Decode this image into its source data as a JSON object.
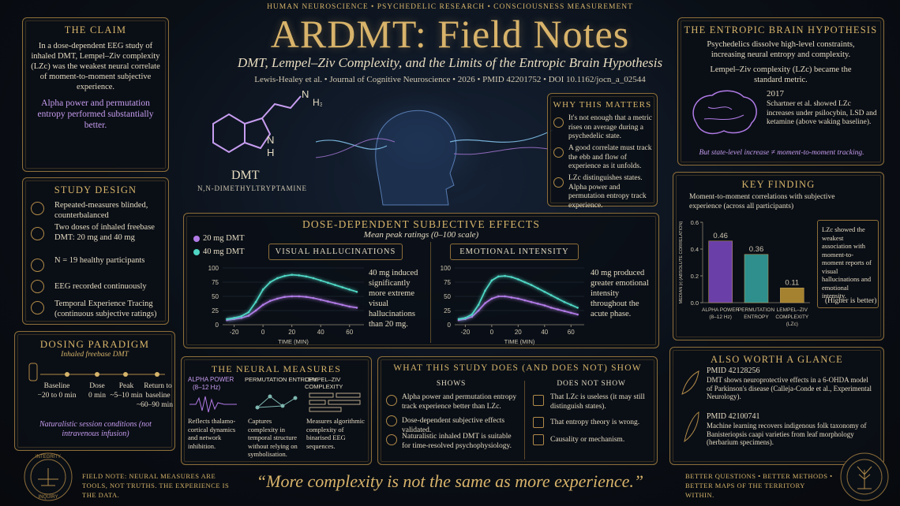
{
  "header": {
    "topline": "HUMAN NEUROSCIENCE  •  PSYCHEDELIC RESEARCH  •  CONSCIOUSNESS MEASUREMENT",
    "title": "ARDMT: Field Notes",
    "subtitle": "DMT, Lempel–Ziv Complexity, and the Limits of the Entropic Brain Hypothesis",
    "citation": "Lewis-Healey et al.  •  Journal of Cognitive Neuroscience  •  2026  •  PMID 42201752  •  DOI 10.1162/jocn_a_02544"
  },
  "molecule": {
    "label": "DMT",
    "full_name": "N,N-DIMETHYLTRYPTAMINE",
    "atoms": [
      "N",
      "H₃",
      "N",
      "H"
    ]
  },
  "claim": {
    "title": "THE CLAIM",
    "text": "In a dose-dependent EEG study of inhaled DMT, Lempel–Ziv complexity (LZc) was the weakest neural correlate of moment-to-moment subjective experience.",
    "highlight": "Alpha power and permutation entropy performed substantially better."
  },
  "study_design": {
    "title": "STUDY DESIGN",
    "items": [
      "Repeated-measures blinded, counterbalanced",
      "Two doses of inhaled freebase DMT: 20 mg and 40 mg",
      "N = 19 healthy participants",
      "EEG recorded continuously",
      "Temporal Experience Tracing (continuous subjective ratings)"
    ]
  },
  "dosing": {
    "title": "DOSING PARADIGM",
    "subtitle": "Inhaled freebase DMT",
    "steps": [
      {
        "label": "Baseline",
        "time": "−20 to 0 min"
      },
      {
        "label": "Dose",
        "time": "0 min"
      },
      {
        "label": "Peak",
        "time": "~5–10 min"
      },
      {
        "label": "Return to baseline",
        "time": "~60–90 min"
      }
    ],
    "note": "Naturalistic session conditions (not intravenous infusion)"
  },
  "effects": {
    "title": "DOSE-DEPENDENT SUBJECTIVE EFFECTS",
    "subtitle": "Mean peak ratings (0–100 scale)"
  },
  "why": {
    "title": "WHY THIS MATTERS",
    "items": [
      "It's not enough that a metric rises on average during a psychedelic state.",
      "A good correlate must track the ebb and flow of experience as it unfolds.",
      "LZc distinguishes states. Alpha power and permutation entropy track experience."
    ]
  },
  "hypothesis": {
    "title": "THE ENTROPIC BRAIN HYPOTHESIS",
    "text": "Psychedelics dissolve high-level constraints, increasing neural entropy and complexity.",
    "metric": "Lempel–Ziv complexity (LZc) became the standard metric.",
    "year": "2017",
    "evidence": "Schartner et al. showed LZc increases under psilocybin, LSD and ketamine (above waking baseline).",
    "caveat": "But state-level increase ≠ moment-to-moment tracking."
  },
  "key_finding": {
    "title": "KEY FINDING",
    "subtitle": "Moment-to-moment correlations with subjective experience (across all participants)",
    "note": "LZc showed the weakest association with moment-to-moment reports of visual hallucinations and emotional intensity.",
    "note_small": "(Higher is better)"
  },
  "neural": {
    "title": "THE NEURAL MEASURES",
    "measures": [
      {
        "name": "ALPHA POWER",
        "sub": "(8–12 Hz)",
        "desc": "Reflects thalamo-cortical dynamics and network inhibition."
      },
      {
        "name": "PERMUTATION ENTROPY",
        "desc": "Captures complexity in temporal structure without relying on symbolisation."
      },
      {
        "name": "LEMPEL–ZIV COMPLEXITY",
        "desc": "Measures algorithmic complexity of binarised EEG sequences."
      }
    ]
  },
  "shows": {
    "title": "WHAT THIS STUDY DOES (AND DOES NOT) SHOW",
    "does_title": "SHOWS",
    "does": [
      "Alpha power and permutation entropy track experience better than LZc.",
      "Dose-dependent subjective effects validated.",
      "Naturalistic inhaled DMT is suitable for time-resolved psychophysiology."
    ],
    "not_title": "DOES NOT SHOW",
    "not": [
      "That LZc is useless (it may still distinguish states).",
      "That entropy theory is wrong.",
      "Causality or mechanism."
    ]
  },
  "also": {
    "title": "ALSO WORTH A GLANCE",
    "items": [
      {
        "pmid": "PMID 42128256",
        "text": "DMT shows neuroprotective effects in a 6-OHDA model of Parkinson's disease (Calleja-Conde et al., Experimental Neurology)."
      },
      {
        "pmid": "PMID 42100741",
        "text": "Machine learning recovers indigenous folk taxonomy of Banisteriopsis caapi varieties from leaf morphology (herbarium specimens)."
      }
    ]
  },
  "footer": {
    "left": "FIELD NOTE: NEURAL MEASURES ARE TOOLS, NOT TRUTHS. THE EXPERIENCE IS THE DATA.",
    "quote": "“More complexity is not the same as more experience.”",
    "right": "BETTER QUESTIONS • BETTER METHODS • BETTER MAPS OF THE TERRITORY WITHIN.",
    "seal": [
      "INTEGRITY",
      "INQUIRY"
    ]
  },
  "chart_data": [
    {
      "type": "line",
      "title": "VISUAL HALLUCINATIONS",
      "x_label": "TIME (MIN)",
      "x": [
        -25,
        -20,
        -15,
        -10,
        -5,
        0,
        5,
        10,
        15,
        20,
        25,
        30,
        35,
        40,
        45,
        50,
        55,
        60,
        65
      ],
      "xlim": [
        -28,
        70
      ],
      "xticks": [
        -20,
        0,
        20,
        40,
        60
      ],
      "ylim": [
        0,
        100
      ],
      "yticks": [
        0,
        25,
        50,
        75,
        100
      ],
      "series": [
        {
          "name": "20 mg DMT",
          "color": "#b17be6",
          "values": [
            8,
            10,
            12,
            16,
            25,
            35,
            42,
            46,
            49,
            50,
            50,
            49,
            47,
            44,
            41,
            38,
            35,
            32,
            30
          ]
        },
        {
          "name": "40 mg DMT",
          "color": "#4fd6c4",
          "values": [
            10,
            12,
            15,
            22,
            40,
            62,
            75,
            82,
            86,
            88,
            87,
            85,
            82,
            78,
            74,
            70,
            66,
            62,
            58
          ]
        }
      ],
      "annotation": "40 mg induced significantly more extreme visual hallucinations than 20 mg."
    },
    {
      "type": "line",
      "title": "EMOTIONAL INTENSITY",
      "x_label": "TIME (MIN)",
      "x": [
        -25,
        -20,
        -15,
        -10,
        -5,
        0,
        5,
        10,
        15,
        20,
        25,
        30,
        35,
        40,
        45,
        50,
        55,
        60,
        65
      ],
      "xlim": [
        -28,
        70
      ],
      "xticks": [
        -20,
        0,
        20,
        40,
        60
      ],
      "ylim": [
        0,
        100
      ],
      "yticks": [
        0,
        25,
        50,
        75,
        100
      ],
      "series": [
        {
          "color": "#b17be6",
          "values": [
            8,
            10,
            14,
            25,
            38,
            46,
            50,
            50,
            48,
            46,
            43,
            40,
            37,
            34,
            30,
            27,
            24,
            21,
            18
          ]
        },
        {
          "color": "#4fd6c4",
          "values": [
            10,
            12,
            18,
            35,
            60,
            78,
            85,
            86,
            84,
            80,
            75,
            70,
            64,
            58,
            52,
            46,
            40,
            35,
            30
          ]
        }
      ],
      "annotation": "40 mg produced greater emotional intensity throughout the acute phase."
    },
    {
      "type": "bar",
      "y_label": "MEDIAN |r| (ABSOLUTE CORRELATION)",
      "categories": [
        [
          "ALPHA POWER",
          "(8–12 Hz)"
        ],
        [
          "PERMUTATION",
          "ENTROPY"
        ],
        [
          "LEMPEL–ZIV",
          "COMPLEXITY",
          "(LZc)"
        ]
      ],
      "values": [
        0.46,
        0.36,
        0.11
      ],
      "colors": [
        "#6a3fa8",
        "#2e8f8c",
        "#a5822f"
      ],
      "ylim": [
        0,
        0.6
      ],
      "yticks": [
        {
          "value": 0,
          "label": "0.0"
        },
        0.2,
        0.4,
        0.6
      ]
    }
  ]
}
